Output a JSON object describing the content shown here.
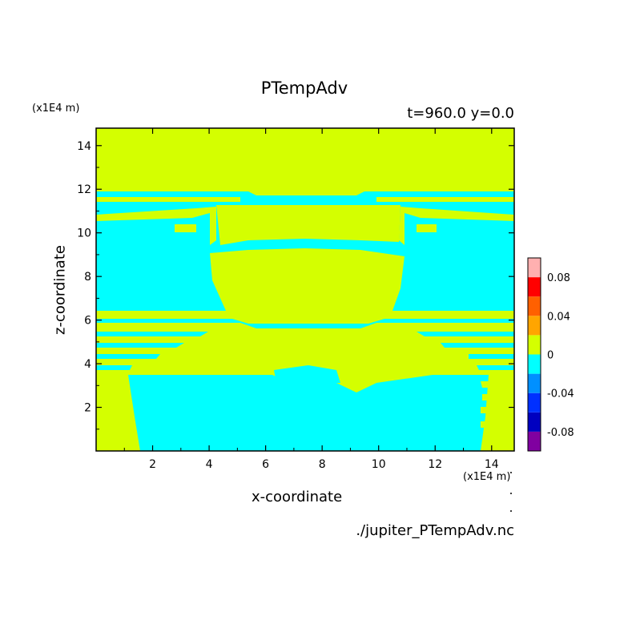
{
  "chart_data": {
    "type": "heatmap",
    "title": "PTempAdv",
    "subtitle": "t=960.0 y=0.0",
    "xlabel": "x-coordinate",
    "ylabel": "z-coordinate",
    "x_unit": "(x1E4 m)",
    "z_unit": "(x1E4 m)",
    "xlim": [
      0,
      14.8
    ],
    "ylim": [
      0,
      14.8
    ],
    "x_ticks": [
      2,
      4,
      6,
      8,
      10,
      12,
      14
    ],
    "y_ticks": [
      2,
      4,
      6,
      8,
      10,
      12,
      14
    ],
    "colorbar": {
      "levels": [
        -0.1,
        -0.08,
        -0.06,
        -0.04,
        -0.02,
        0,
        0.02,
        0.04,
        0.06,
        0.08,
        0.1
      ],
      "colors": [
        "#8000a0",
        "#0000c0",
        "#0030ff",
        "#0090ff",
        "#00ffff",
        "#d4ff00",
        "#ffa500",
        "#ff6000",
        "#ff0000",
        "#ffb0b0"
      ],
      "tick_labels": [
        "0.08",
        "0.04",
        "0",
        "-0.04",
        "-0.08"
      ],
      "tick_values": [
        0.08,
        0.04,
        0,
        -0.04,
        -0.08
      ]
    },
    "field_colors": {
      "positive": "#d4ff00",
      "negative": "#00ffff"
    }
  },
  "footer": {
    "source": "./jupiter_PTempAdv.nc"
  }
}
